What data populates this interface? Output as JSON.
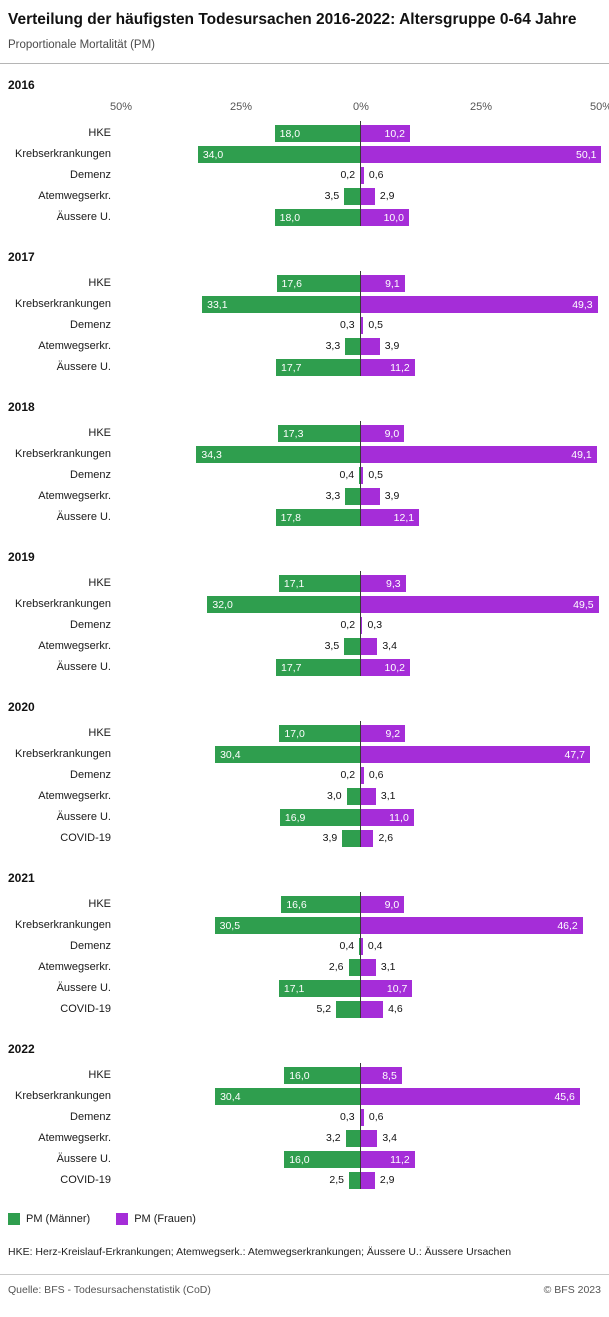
{
  "header": {
    "title": "Verteilung der häufigsten Todesursachen 2016-2022: Altersgruppe 0-64 Jahre",
    "subtitle": "Proportionale Mortalität (PM)"
  },
  "axis": {
    "ticks": [
      "50%",
      "25%",
      "0%",
      "25%",
      "50%"
    ]
  },
  "chart_data": {
    "type": "bar",
    "variant": "diverging-horizontal",
    "title": "Verteilung der häufigsten Todesursachen 2016-2022: Altersgruppe 0-64 Jahre",
    "subtitle": "Proportionale Mortalität (PM)",
    "unit": "%",
    "xlim": [
      -50,
      50
    ],
    "axis_ticks": [
      "50%",
      "25%",
      "0%",
      "25%",
      "50%"
    ],
    "grid": false,
    "legend_position": "bottom",
    "series_names": [
      "PM (Männer)",
      "PM (Frauen)"
    ],
    "colors": {
      "maenner": "#2f9e4e",
      "frauen": "#a52dd8"
    },
    "inside_label_threshold": 8,
    "sections": [
      {
        "year": "2016",
        "rows": [
          {
            "label": "HKE",
            "m": 18.0,
            "f": 10.2
          },
          {
            "label": "Krebserkrankungen",
            "m": 34.0,
            "f": 50.1
          },
          {
            "label": "Demenz",
            "m": 0.2,
            "f": 0.6
          },
          {
            "label": "Atemwegserkr.",
            "m": 3.5,
            "f": 2.9
          },
          {
            "label": "Äussere U.",
            "m": 18.0,
            "f": 10.0
          }
        ]
      },
      {
        "year": "2017",
        "rows": [
          {
            "label": "HKE",
            "m": 17.6,
            "f": 9.1
          },
          {
            "label": "Krebserkrankungen",
            "m": 33.1,
            "f": 49.3
          },
          {
            "label": "Demenz",
            "m": 0.3,
            "f": 0.5
          },
          {
            "label": "Atemwegserkr.",
            "m": 3.3,
            "f": 3.9
          },
          {
            "label": "Äussere U.",
            "m": 17.7,
            "f": 11.2
          }
        ]
      },
      {
        "year": "2018",
        "rows": [
          {
            "label": "HKE",
            "m": 17.3,
            "f": 9.0
          },
          {
            "label": "Krebserkrankungen",
            "m": 34.3,
            "f": 49.1
          },
          {
            "label": "Demenz",
            "m": 0.4,
            "f": 0.5
          },
          {
            "label": "Atemwegserkr.",
            "m": 3.3,
            "f": 3.9
          },
          {
            "label": "Äussere U.",
            "m": 17.8,
            "f": 12.1
          }
        ]
      },
      {
        "year": "2019",
        "rows": [
          {
            "label": "HKE",
            "m": 17.1,
            "f": 9.3
          },
          {
            "label": "Krebserkrankungen",
            "m": 32.0,
            "f": 49.5
          },
          {
            "label": "Demenz",
            "m": 0.2,
            "f": 0.3
          },
          {
            "label": "Atemwegserkr.",
            "m": 3.5,
            "f": 3.4
          },
          {
            "label": "Äussere U.",
            "m": 17.7,
            "f": 10.2
          }
        ]
      },
      {
        "year": "2020",
        "rows": [
          {
            "label": "HKE",
            "m": 17.0,
            "f": 9.2
          },
          {
            "label": "Krebserkrankungen",
            "m": 30.4,
            "f": 47.7
          },
          {
            "label": "Demenz",
            "m": 0.2,
            "f": 0.6
          },
          {
            "label": "Atemwegserkr.",
            "m": 3.0,
            "f": 3.1
          },
          {
            "label": "Äussere U.",
            "m": 16.9,
            "f": 11.0
          },
          {
            "label": "COVID-19",
            "m": 3.9,
            "f": 2.6
          }
        ]
      },
      {
        "year": "2021",
        "rows": [
          {
            "label": "HKE",
            "m": 16.6,
            "f": 9.0
          },
          {
            "label": "Krebserkrankungen",
            "m": 30.5,
            "f": 46.2
          },
          {
            "label": "Demenz",
            "m": 0.4,
            "f": 0.4
          },
          {
            "label": "Atemwegserkr.",
            "m": 2.6,
            "f": 3.1
          },
          {
            "label": "Äussere U.",
            "m": 17.1,
            "f": 10.7
          },
          {
            "label": "COVID-19",
            "m": 5.2,
            "f": 4.6
          }
        ]
      },
      {
        "year": "2022",
        "rows": [
          {
            "label": "HKE",
            "m": 16.0,
            "f": 8.5
          },
          {
            "label": "Krebserkrankungen",
            "m": 30.4,
            "f": 45.6
          },
          {
            "label": "Demenz",
            "m": 0.3,
            "f": 0.6
          },
          {
            "label": "Atemwegserkr.",
            "m": 3.2,
            "f": 3.4
          },
          {
            "label": "Äussere U.",
            "m": 16.0,
            "f": 11.2
          },
          {
            "label": "COVID-19",
            "m": 2.5,
            "f": 2.9
          }
        ]
      }
    ]
  },
  "legend": {
    "maenner": "PM (Männer)",
    "frauen": "PM (Frauen)"
  },
  "footnote": "HKE: Herz-Kreislauf-Erkrankungen; Atemwegserk.: Atemwegserkrankungen; Äussere U.: Äussere Ursachen",
  "footer": {
    "source": "Quelle: BFS - Todesursachenstatistik (CoD)",
    "copyright": "© BFS 2023"
  }
}
